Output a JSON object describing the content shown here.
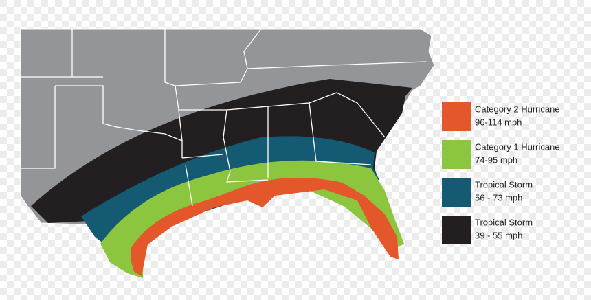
{
  "legend": [
    {
      "label": "Category 2 Hurricane",
      "range": "96-114 mph",
      "color": "#e4572a"
    },
    {
      "label": "Category 1 Hurricane",
      "range": "74-95 mph",
      "color": "#8cc63f"
    },
    {
      "label": "Tropical Storm",
      "range": "56 - 73 mph",
      "color": "#135a72"
    },
    {
      "label": "Tropical Storm",
      "range": "39 - 55 mph",
      "color": "#231f20"
    }
  ]
}
